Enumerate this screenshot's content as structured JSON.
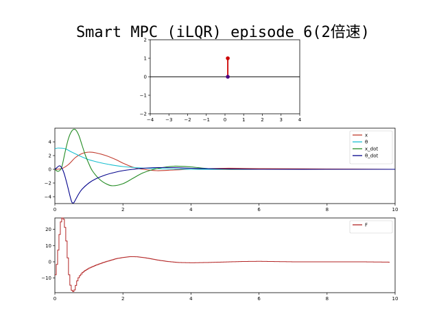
{
  "title": "Smart MPC (iLQR)  episode 6(2倍速)",
  "chart_data": [
    {
      "type": "line",
      "panel": "cart-pole-animation",
      "xlim": [
        -4,
        4
      ],
      "ylim": [
        -2,
        2
      ],
      "xticks": [
        -4,
        -3,
        -2,
        -1,
        0,
        1,
        2,
        3,
        4
      ],
      "yticks": [
        -2,
        -1,
        0,
        1,
        2
      ],
      "cart": {
        "x": 0.15,
        "y": 0.0
      },
      "pole_tip": {
        "x": 0.15,
        "y": 1.0
      },
      "colors": {
        "pole": "#cc0000",
        "cart": "#4b0082",
        "ground": "#000000"
      }
    },
    {
      "type": "line",
      "panel": "state-trajectories",
      "xlim": [
        0,
        10
      ],
      "ylim": [
        -5,
        6
      ],
      "xticks": [
        0,
        2,
        4,
        6,
        8,
        10
      ],
      "yticks": [
        -4,
        -2,
        0,
        2,
        4
      ],
      "legend_position": "top-right",
      "series": [
        {
          "name": "x",
          "color": "#c0392b",
          "x": [
            0,
            0.2,
            0.4,
            0.6,
            0.8,
            1.0,
            1.2,
            1.5,
            1.8,
            2.0,
            2.3,
            2.6,
            3.0,
            3.5,
            4.0,
            5.0,
            6.0,
            8.0,
            10.0
          ],
          "y": [
            0,
            0.1,
            0.7,
            1.7,
            2.3,
            2.5,
            2.4,
            2.0,
            1.4,
            0.9,
            0.3,
            0.0,
            -0.2,
            -0.1,
            0.0,
            0.15,
            0.1,
            0.05,
            0.0
          ]
        },
        {
          "name": "θ",
          "color": "#17becf",
          "x": [
            0,
            0.1,
            0.3,
            0.5,
            0.8,
            1.0,
            1.3,
            1.6,
            2.0,
            2.5,
            3.0,
            4.0,
            5.0,
            6.0,
            8.0,
            10.0
          ],
          "y": [
            3.0,
            3.1,
            3.0,
            2.5,
            1.8,
            1.4,
            1.0,
            0.7,
            0.4,
            0.2,
            0.1,
            0.0,
            0.0,
            0.0,
            0.0,
            0.0
          ]
        },
        {
          "name": "x_dot",
          "color": "#228b22",
          "x": [
            0,
            0.1,
            0.2,
            0.3,
            0.4,
            0.5,
            0.6,
            0.7,
            0.8,
            0.9,
            1.0,
            1.1,
            1.3,
            1.5,
            1.7,
            2.0,
            2.3,
            2.6,
            3.0,
            3.5,
            4.0,
            4.5,
            5.0,
            6.0,
            8.0,
            10.0
          ],
          "y": [
            0,
            -0.3,
            0.3,
            2.5,
            4.5,
            5.6,
            5.8,
            5.0,
            3.5,
            2.0,
            0.8,
            -0.2,
            -1.4,
            -2.1,
            -2.4,
            -2.1,
            -1.3,
            -0.5,
            0.1,
            0.45,
            0.35,
            0.1,
            0.0,
            0.0,
            0.0,
            0.0
          ]
        },
        {
          "name": "θ_dot",
          "color": "#00008b",
          "x": [
            0,
            0.05,
            0.15,
            0.25,
            0.35,
            0.45,
            0.5,
            0.55,
            0.6,
            0.7,
            0.8,
            1.0,
            1.2,
            1.5,
            1.8,
            2.0,
            2.3,
            2.6,
            3.0,
            3.5,
            4.0,
            5.0,
            6.0,
            8.0,
            10.0
          ],
          "y": [
            0,
            0.2,
            0.5,
            -0.3,
            -2.0,
            -4.0,
            -4.8,
            -4.9,
            -4.5,
            -3.6,
            -2.9,
            -2.0,
            -1.4,
            -0.8,
            -0.4,
            -0.2,
            0.0,
            0.15,
            0.25,
            0.25,
            0.15,
            0.05,
            0.0,
            0.0,
            0.0
          ]
        }
      ]
    },
    {
      "type": "line",
      "panel": "control-input",
      "step": true,
      "xlim": [
        0,
        10
      ],
      "ylim": [
        -19,
        27
      ],
      "xticks": [
        0,
        2,
        4,
        6,
        8,
        10
      ],
      "yticks": [
        -10,
        0,
        10,
        20
      ],
      "legend_position": "top-right",
      "series": [
        {
          "name": "F",
          "color": "#b22222",
          "x": [
            0,
            0.05,
            0.1,
            0.15,
            0.2,
            0.25,
            0.3,
            0.35,
            0.4,
            0.45,
            0.5,
            0.55,
            0.6,
            0.65,
            0.7,
            0.75,
            0.8,
            0.9,
            1.0,
            1.2,
            1.4,
            1.6,
            1.8,
            2.0,
            2.2,
            2.4,
            2.6,
            2.8,
            3.0,
            3.3,
            3.6,
            4.0,
            4.5,
            5.0,
            5.5,
            6.0,
            6.5,
            7.0,
            8.0,
            9.0,
            9.8
          ],
          "y": [
            -8,
            0,
            12,
            24,
            27,
            26,
            18,
            5,
            -8,
            -16,
            -18.5,
            -18,
            -14.5,
            -11,
            -9,
            -7.8,
            -6.5,
            -5,
            -3.8,
            -2,
            -0.5,
            0.8,
            2,
            2.7,
            3.2,
            3.1,
            2.6,
            1.9,
            1.1,
            0.2,
            -0.4,
            -0.6,
            -0.4,
            -0.1,
            0.2,
            0.3,
            0.15,
            0.0,
            0.0,
            0.0,
            -0.2
          ]
        }
      ]
    }
  ]
}
